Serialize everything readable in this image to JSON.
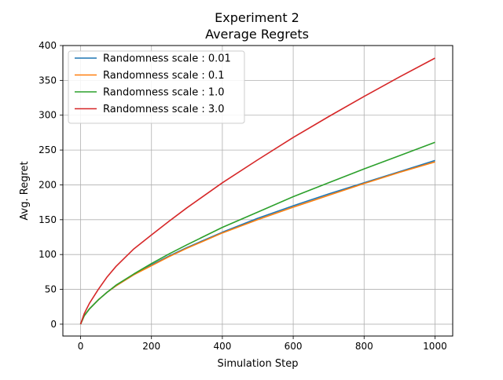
{
  "chart_data": {
    "type": "line",
    "title": "Experiment 2",
    "subtitle": "Average Regrets",
    "xlabel": "Simulation Step",
    "ylabel": "Avg. Regret",
    "xlim": [
      -50,
      1050
    ],
    "ylim": [
      -17,
      400
    ],
    "xticks": [
      0,
      200,
      400,
      600,
      800,
      1000
    ],
    "yticks": [
      0,
      50,
      100,
      150,
      200,
      250,
      300,
      350,
      400
    ],
    "grid": true,
    "legend_position": "top-left",
    "x": [
      0,
      10,
      25,
      50,
      75,
      100,
      150,
      200,
      250,
      300,
      400,
      500,
      600,
      700,
      800,
      900,
      1000
    ],
    "series": [
      {
        "name": "Randomness scale : 0.01",
        "color": "#1f77b4",
        "values": [
          0,
          12,
          22,
          35,
          46,
          55,
          71,
          85,
          98,
          110,
          132,
          152,
          170,
          187,
          203,
          219,
          235
        ]
      },
      {
        "name": "Randomness scale : 0.1",
        "color": "#ff7f0e",
        "values": [
          0,
          12,
          22,
          35,
          46,
          55,
          71,
          84,
          97,
          109,
          131,
          150,
          168,
          185,
          202,
          218,
          233
        ]
      },
      {
        "name": "Randomness scale : 1.0",
        "color": "#2ca02c",
        "values": [
          0,
          12,
          22,
          35,
          46,
          56,
          72,
          87,
          101,
          114,
          139,
          161,
          183,
          203,
          223,
          242,
          261
        ]
      },
      {
        "name": "Randomness scale : 3.0",
        "color": "#d62728",
        "values": [
          0,
          15,
          30,
          50,
          68,
          83,
          108,
          128,
          148,
          167,
          203,
          236,
          268,
          298,
          327,
          355,
          382
        ]
      }
    ]
  }
}
